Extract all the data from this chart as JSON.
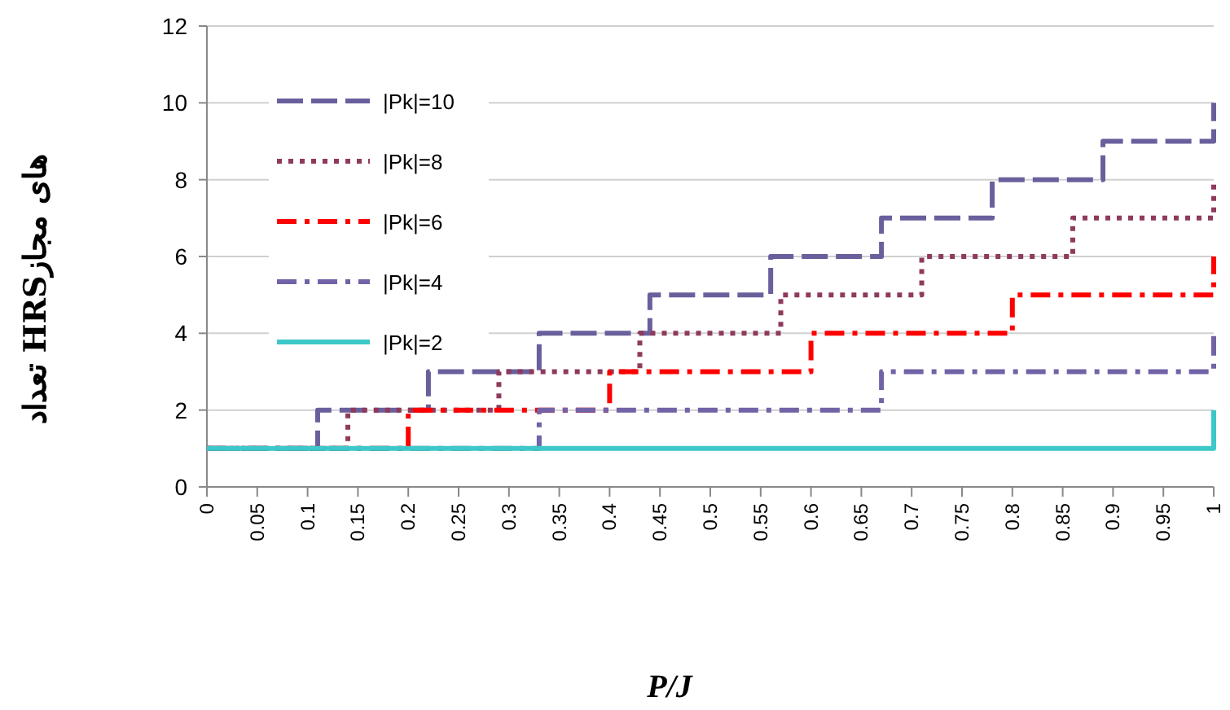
{
  "chart_data": {
    "type": "step",
    "xlabel": "P/J",
    "ylabel": "تعداد HRSهای مجاز",
    "series": [
      {
        "name": "|Pk|=10",
        "color": "#6a5f9c",
        "line_style": "dashed",
        "x": [
          0,
          0.11,
          0.22,
          0.33,
          0.44,
          0.56,
          0.67,
          0.78,
          0.89,
          1
        ],
        "values": [
          1,
          2,
          3,
          4,
          5,
          6,
          7,
          8,
          9,
          10
        ]
      },
      {
        "name": "|Pk|=8",
        "color": "#8e3a5c",
        "line_style": "dotted",
        "x": [
          0,
          0.14,
          0.29,
          0.43,
          0.57,
          0.71,
          0.86,
          1
        ],
        "values": [
          1,
          2,
          3,
          4,
          5,
          6,
          7,
          8
        ]
      },
      {
        "name": "|Pk|=6",
        "color": "#ff0000",
        "line_style": "dashdot",
        "x": [
          0,
          0.2,
          0.4,
          0.6,
          0.8,
          1
        ],
        "values": [
          1,
          2,
          3,
          4,
          5,
          6
        ]
      },
      {
        "name": "|Pk|=4",
        "color": "#7263a6",
        "line_style": "dashdot",
        "x": [
          0,
          0.33,
          0.67,
          1
        ],
        "values": [
          1,
          2,
          3,
          4
        ]
      },
      {
        "name": "|Pk|=2",
        "color": "#3cc8c8",
        "line_style": "solid",
        "x": [
          0,
          1
        ],
        "values": [
          1,
          2
        ]
      }
    ],
    "xlim": [
      0,
      1
    ],
    "xticks": [
      0,
      0.05,
      0.1,
      0.15,
      0.2,
      0.25,
      0.3,
      0.35,
      0.4,
      0.45,
      0.5,
      0.55,
      0.6,
      0.65,
      0.7,
      0.75,
      0.8,
      0.85,
      0.9,
      0.95,
      1
    ],
    "ylim": [
      0,
      12
    ],
    "yticks": [
      0,
      2,
      4,
      6,
      8,
      10,
      12
    ],
    "grid": "y",
    "legend": "top left"
  }
}
